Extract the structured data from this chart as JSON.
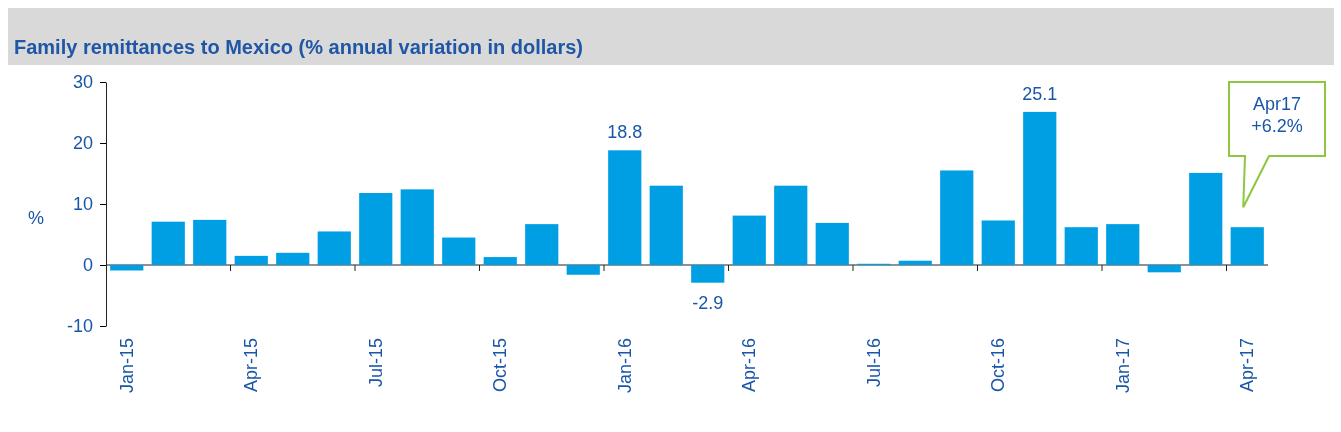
{
  "chart_data": {
    "type": "bar",
    "title": "Family remittances to Mexico (% annual variation in dollars)",
    "ylabel": "%",
    "categories": [
      "Jan-15",
      null,
      null,
      "Apr-15",
      null,
      null,
      "Jul-15",
      null,
      null,
      "Oct-15",
      null,
      null,
      "Jan-16",
      null,
      null,
      "Apr-16",
      null,
      null,
      "Jul-16",
      null,
      null,
      "Oct-16",
      null,
      null,
      "Jan-17",
      null,
      null,
      "Apr-17"
    ],
    "values": [
      -0.9,
      7.1,
      7.4,
      1.5,
      2.0,
      5.5,
      11.8,
      12.4,
      4.5,
      1.3,
      6.7,
      -1.6,
      18.8,
      13.0,
      -2.9,
      8.1,
      13.0,
      6.9,
      0.2,
      0.7,
      15.5,
      7.3,
      25.1,
      6.2,
      6.7,
      -1.2,
      15.1,
      6.2
    ],
    "value_labels": [
      null,
      null,
      null,
      null,
      null,
      null,
      null,
      null,
      null,
      null,
      null,
      null,
      "18.8",
      null,
      "-2.9",
      null,
      null,
      null,
      null,
      null,
      null,
      null,
      "25.1",
      null,
      null,
      null,
      null,
      null
    ],
    "color": "#009fe3",
    "ylim": [
      -10,
      30
    ],
    "yticks": [
      -10,
      0,
      10,
      20,
      30
    ],
    "annotations": [
      "Apr17\n+6.2%"
    ]
  }
}
